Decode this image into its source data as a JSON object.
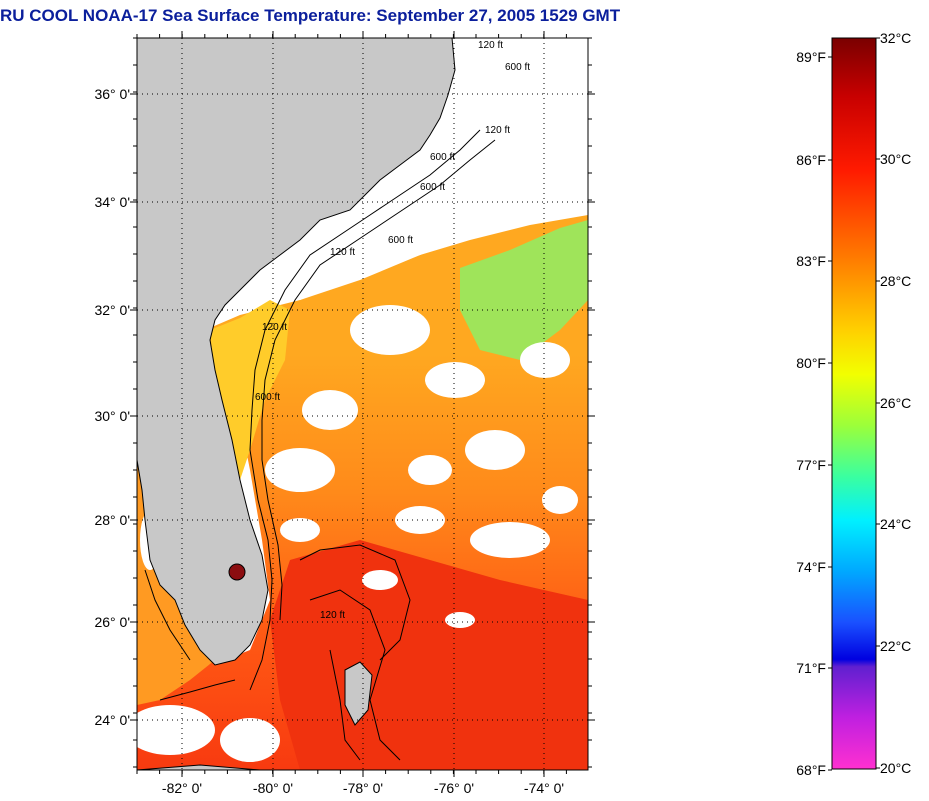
{
  "title": "RU COOL  NOAA-17  Sea Surface Temperature:  September 27, 2005 1529 GMT",
  "map": {
    "lat_labels": [
      "36° 0'",
      "34° 0'",
      "32° 0'",
      "30° 0'",
      "28° 0'",
      "26° 0'",
      "24° 0'"
    ],
    "lon_labels": [
      "-82° 0'",
      "-80° 0'",
      "-78° 0'",
      "-76° 0'",
      "-74° 0'"
    ],
    "contour_labels": [
      "120 ft",
      "600 ft",
      "120 ft",
      "600 ft",
      "600 ft",
      "120 ft",
      "600 ft",
      "120 ft",
      "600 ft",
      "120 ft"
    ],
    "colors": {
      "land": "#c8c8c8",
      "coastline": "#000000",
      "grid": "#000000",
      "warm": "#f26a1a",
      "cloud": "#ffffff"
    }
  },
  "colorbar": {
    "f_labels": [
      "89°F",
      "86°F",
      "83°F",
      "80°F",
      "77°F",
      "74°F",
      "71°F",
      "68°F"
    ],
    "c_labels": [
      "32°C",
      "30°C",
      "28°C",
      "26°C",
      "24°C",
      "22°C",
      "20°C"
    ]
  }
}
